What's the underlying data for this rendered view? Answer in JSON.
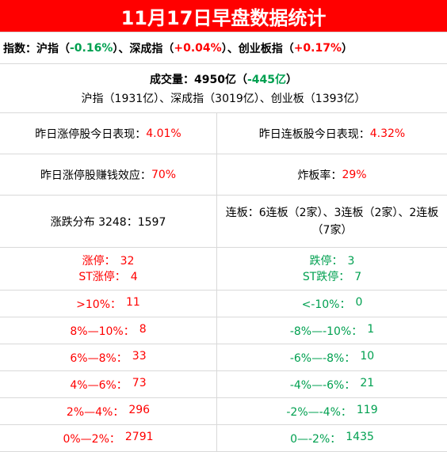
{
  "title": "11月17日早盘数据统计",
  "index_row": {
    "label": "指数：",
    "sh_label": "沪指（",
    "sh_value": "-0.16%",
    "sh_end": "）、",
    "sz_label": "深成指（",
    "sz_value": "+0.04%",
    "sz_end": "）、",
    "cy_label": "创业板指（",
    "cy_value": "+0.17%",
    "cy_end": "）"
  },
  "volume": {
    "label": "成交量：",
    "value": "4950亿",
    "open": "（",
    "change": "-445亿",
    "close": "）",
    "detail": "沪指（1931亿）、深成指（3019亿）、创业板（1393亿）"
  },
  "stats": [
    {
      "left_label": "昨日涨停股今日表现：",
      "left_value": "4.01%",
      "right_label": "昨日连板股今日表现：",
      "right_value": "4.32%"
    },
    {
      "left_label": "昨日涨停股赚钱效应：",
      "left_value": "70%",
      "right_label": "炸板率：",
      "right_value": "29%"
    }
  ],
  "distribution": {
    "left": "涨跌分布 3248：1597",
    "right": "连板：6连板（2家）、3连板（2家）、2连板（7家）"
  },
  "limit": {
    "up_label": "涨停：",
    "up_value": "32",
    "st_up_label": "ST涨停：",
    "st_up_value": "4",
    "down_label": "跌停：",
    "down_value": "3",
    "st_down_label": "ST跌停：",
    "st_down_value": "7"
  },
  "ranges": [
    {
      "left_label": ">10%：",
      "left_value": "11",
      "right_label": "<-10%：",
      "right_value": "0"
    },
    {
      "left_label": "8%—10%：",
      "left_value": "8",
      "right_label": "-8%—-10%：",
      "right_value": "1"
    },
    {
      "left_label": "6%—8%：",
      "left_value": "33",
      "right_label": "-6%—-8%：",
      "right_value": "10"
    },
    {
      "left_label": "4%—6%：",
      "left_value": "73",
      "right_label": "-4%—-6%：",
      "right_value": "21"
    },
    {
      "left_label": "2%—4%：",
      "left_value": "296",
      "right_label": "-2%—-4%：",
      "right_value": "119"
    },
    {
      "left_label": "0%—2%：",
      "left_value": "2791",
      "right_label": "0—-2%：",
      "right_value": "1435"
    }
  ]
}
